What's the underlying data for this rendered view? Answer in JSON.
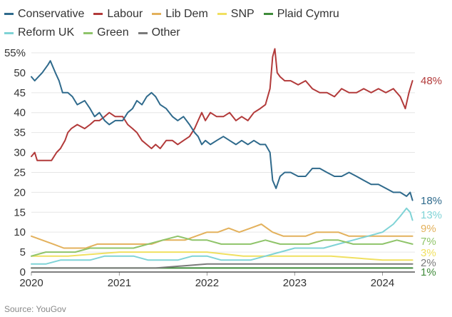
{
  "source": "Source: YouGov",
  "chart_data": {
    "type": "line",
    "y_ticks": [
      "0",
      "5",
      "10",
      "15",
      "20",
      "25",
      "30",
      "35",
      "40",
      "45",
      "50",
      "55%"
    ],
    "ylim": [
      0,
      55
    ],
    "x_ticks": [
      "2020",
      "2021",
      "2022",
      "2023",
      "2024"
    ],
    "xlim": [
      "2020-01-01",
      "2024-05-15"
    ],
    "grid": true,
    "legend_position": "top",
    "series": [
      {
        "name": "Conservative",
        "color": "#2f6a8c",
        "end_label": "18%",
        "points": [
          [
            "2020-01-01",
            49
          ],
          [
            "2020-01-15",
            48
          ],
          [
            "2020-02-15",
            50
          ],
          [
            "2020-03-10",
            52
          ],
          [
            "2020-03-20",
            53
          ],
          [
            "2020-04-10",
            50
          ],
          [
            "2020-04-25",
            48
          ],
          [
            "2020-05-10",
            45
          ],
          [
            "2020-06-01",
            45
          ],
          [
            "2020-06-20",
            44
          ],
          [
            "2020-07-10",
            42
          ],
          [
            "2020-08-10",
            43
          ],
          [
            "2020-09-01",
            41
          ],
          [
            "2020-09-20",
            39
          ],
          [
            "2020-10-10",
            40
          ],
          [
            "2020-11-01",
            38
          ],
          [
            "2020-11-20",
            37
          ],
          [
            "2020-12-15",
            38
          ],
          [
            "2021-01-15",
            38
          ],
          [
            "2021-02-05",
            40
          ],
          [
            "2021-02-25",
            41
          ],
          [
            "2021-03-15",
            43
          ],
          [
            "2021-04-05",
            42
          ],
          [
            "2021-04-25",
            44
          ],
          [
            "2021-05-15",
            45
          ],
          [
            "2021-06-01",
            44
          ],
          [
            "2021-06-20",
            42
          ],
          [
            "2021-07-15",
            41
          ],
          [
            "2021-08-10",
            39
          ],
          [
            "2021-09-01",
            38
          ],
          [
            "2021-09-25",
            39
          ],
          [
            "2021-10-20",
            37
          ],
          [
            "2021-11-10",
            35
          ],
          [
            "2021-11-25",
            34
          ],
          [
            "2021-12-10",
            32
          ],
          [
            "2021-12-25",
            33
          ],
          [
            "2022-01-15",
            32
          ],
          [
            "2022-02-10",
            33
          ],
          [
            "2022-03-10",
            34
          ],
          [
            "2022-04-05",
            33
          ],
          [
            "2022-05-01",
            32
          ],
          [
            "2022-05-25",
            33
          ],
          [
            "2022-06-20",
            32
          ],
          [
            "2022-07-15",
            33
          ],
          [
            "2022-08-10",
            32
          ],
          [
            "2022-09-01",
            32
          ],
          [
            "2022-09-20",
            30
          ],
          [
            "2022-10-01",
            23
          ],
          [
            "2022-10-15",
            21
          ],
          [
            "2022-11-01",
            24
          ],
          [
            "2022-11-20",
            25
          ],
          [
            "2022-12-15",
            25
          ],
          [
            "2023-01-15",
            24
          ],
          [
            "2023-02-15",
            24
          ],
          [
            "2023-03-15",
            26
          ],
          [
            "2023-04-15",
            26
          ],
          [
            "2023-05-15",
            25
          ],
          [
            "2023-06-15",
            24
          ],
          [
            "2023-07-15",
            24
          ],
          [
            "2023-08-15",
            25
          ],
          [
            "2023-09-15",
            24
          ],
          [
            "2023-10-15",
            23
          ],
          [
            "2023-11-15",
            22
          ],
          [
            "2023-12-15",
            22
          ],
          [
            "2024-01-15",
            21
          ],
          [
            "2024-02-15",
            20
          ],
          [
            "2024-03-15",
            20
          ],
          [
            "2024-04-10",
            19
          ],
          [
            "2024-04-25",
            20
          ],
          [
            "2024-05-05",
            18
          ]
        ]
      },
      {
        "name": "Labour",
        "color": "#b23a3a",
        "end_label": "48%",
        "points": [
          [
            "2020-01-01",
            29
          ],
          [
            "2020-01-15",
            30
          ],
          [
            "2020-01-25",
            28
          ],
          [
            "2020-02-15",
            28
          ],
          [
            "2020-03-10",
            28
          ],
          [
            "2020-03-25",
            28
          ],
          [
            "2020-04-15",
            30
          ],
          [
            "2020-05-01",
            31
          ],
          [
            "2020-05-20",
            33
          ],
          [
            "2020-06-01",
            35
          ],
          [
            "2020-06-15",
            36
          ],
          [
            "2020-07-10",
            37
          ],
          [
            "2020-08-10",
            36
          ],
          [
            "2020-09-01",
            37
          ],
          [
            "2020-09-20",
            38
          ],
          [
            "2020-10-10",
            38
          ],
          [
            "2020-11-01",
            39
          ],
          [
            "2020-11-20",
            40
          ],
          [
            "2020-12-15",
            39
          ],
          [
            "2021-01-15",
            39
          ],
          [
            "2021-02-05",
            37
          ],
          [
            "2021-02-25",
            36
          ],
          [
            "2021-03-15",
            35
          ],
          [
            "2021-04-05",
            33
          ],
          [
            "2021-04-25",
            32
          ],
          [
            "2021-05-15",
            31
          ],
          [
            "2021-06-01",
            32
          ],
          [
            "2021-06-20",
            31
          ],
          [
            "2021-07-15",
            33
          ],
          [
            "2021-08-10",
            33
          ],
          [
            "2021-09-01",
            32
          ],
          [
            "2021-09-25",
            33
          ],
          [
            "2021-10-20",
            34
          ],
          [
            "2021-11-10",
            36
          ],
          [
            "2021-11-25",
            38
          ],
          [
            "2021-12-10",
            40
          ],
          [
            "2021-12-25",
            38
          ],
          [
            "2022-01-15",
            40
          ],
          [
            "2022-02-10",
            39
          ],
          [
            "2022-03-10",
            39
          ],
          [
            "2022-04-05",
            40
          ],
          [
            "2022-05-01",
            38
          ],
          [
            "2022-05-25",
            39
          ],
          [
            "2022-06-20",
            38
          ],
          [
            "2022-07-15",
            40
          ],
          [
            "2022-08-10",
            41
          ],
          [
            "2022-09-01",
            42
          ],
          [
            "2022-09-20",
            46
          ],
          [
            "2022-10-01",
            54
          ],
          [
            "2022-10-10",
            56
          ],
          [
            "2022-10-20",
            50
          ],
          [
            "2022-11-01",
            49
          ],
          [
            "2022-11-20",
            48
          ],
          [
            "2022-12-15",
            48
          ],
          [
            "2023-01-15",
            47
          ],
          [
            "2023-02-15",
            48
          ],
          [
            "2023-03-15",
            46
          ],
          [
            "2023-04-15",
            45
          ],
          [
            "2023-05-15",
            45
          ],
          [
            "2023-06-15",
            44
          ],
          [
            "2023-07-15",
            46
          ],
          [
            "2023-08-15",
            45
          ],
          [
            "2023-09-15",
            45
          ],
          [
            "2023-10-15",
            46
          ],
          [
            "2023-11-15",
            45
          ],
          [
            "2023-12-15",
            46
          ],
          [
            "2024-01-15",
            45
          ],
          [
            "2024-02-15",
            46
          ],
          [
            "2024-03-15",
            44
          ],
          [
            "2024-04-05",
            41
          ],
          [
            "2024-04-20",
            45
          ],
          [
            "2024-05-05",
            48
          ]
        ]
      },
      {
        "name": "Lib Dem",
        "color": "#e3b15c",
        "end_label": "9%",
        "points": [
          [
            "2020-01-01",
            9
          ],
          [
            "2020-02-15",
            8
          ],
          [
            "2020-04-01",
            7
          ],
          [
            "2020-05-15",
            6
          ],
          [
            "2020-07-01",
            6
          ],
          [
            "2020-08-15",
            6
          ],
          [
            "2020-10-01",
            7
          ],
          [
            "2020-11-15",
            7
          ],
          [
            "2021-01-01",
            7
          ],
          [
            "2021-02-15",
            7
          ],
          [
            "2021-04-01",
            7
          ],
          [
            "2021-05-15",
            7
          ],
          [
            "2021-07-01",
            8
          ],
          [
            "2021-08-15",
            8
          ],
          [
            "2021-10-01",
            8
          ],
          [
            "2021-11-15",
            9
          ],
          [
            "2022-01-01",
            10
          ],
          [
            "2022-02-15",
            10
          ],
          [
            "2022-04-01",
            11
          ],
          [
            "2022-05-15",
            10
          ],
          [
            "2022-07-01",
            11
          ],
          [
            "2022-08-15",
            12
          ],
          [
            "2022-10-01",
            10
          ],
          [
            "2022-11-15",
            9
          ],
          [
            "2023-01-01",
            9
          ],
          [
            "2023-02-15",
            9
          ],
          [
            "2023-04-01",
            10
          ],
          [
            "2023-05-15",
            10
          ],
          [
            "2023-07-01",
            10
          ],
          [
            "2023-08-15",
            9
          ],
          [
            "2023-10-01",
            9
          ],
          [
            "2023-11-15",
            9
          ],
          [
            "2024-01-01",
            9
          ],
          [
            "2024-02-15",
            9
          ],
          [
            "2024-04-01",
            9
          ],
          [
            "2024-05-05",
            9
          ]
        ]
      },
      {
        "name": "SNP",
        "color": "#f0e060",
        "end_label": "3%",
        "points": [
          [
            "2020-01-01",
            4
          ],
          [
            "2020-06-01",
            4
          ],
          [
            "2021-01-01",
            5
          ],
          [
            "2021-06-01",
            5
          ],
          [
            "2022-01-01",
            5
          ],
          [
            "2022-06-01",
            4
          ],
          [
            "2023-01-01",
            4
          ],
          [
            "2023-06-01",
            4
          ],
          [
            "2024-01-01",
            3
          ],
          [
            "2024-05-05",
            3
          ]
        ]
      },
      {
        "name": "Plaid Cymru",
        "color": "#3f8b3a",
        "end_label": "1%",
        "points": [
          [
            "2020-01-01",
            1
          ],
          [
            "2020-06-01",
            1
          ],
          [
            "2021-01-01",
            1
          ],
          [
            "2021-06-01",
            1
          ],
          [
            "2022-01-01",
            1
          ],
          [
            "2022-06-01",
            1
          ],
          [
            "2023-01-01",
            1
          ],
          [
            "2023-06-01",
            1
          ],
          [
            "2024-01-01",
            1
          ],
          [
            "2024-05-05",
            1
          ]
        ]
      },
      {
        "name": "Reform UK",
        "color": "#7fd3d6",
        "end_label": "13%",
        "points": [
          [
            "2020-01-01",
            2
          ],
          [
            "2020-03-01",
            2
          ],
          [
            "2020-05-01",
            3
          ],
          [
            "2020-07-01",
            3
          ],
          [
            "2020-09-01",
            3
          ],
          [
            "2020-11-01",
            4
          ],
          [
            "2021-01-01",
            4
          ],
          [
            "2021-03-01",
            4
          ],
          [
            "2021-05-01",
            3
          ],
          [
            "2021-07-01",
            3
          ],
          [
            "2021-09-01",
            3
          ],
          [
            "2021-11-01",
            4
          ],
          [
            "2022-01-01",
            4
          ],
          [
            "2022-03-01",
            3
          ],
          [
            "2022-05-01",
            3
          ],
          [
            "2022-07-01",
            3
          ],
          [
            "2022-09-01",
            4
          ],
          [
            "2022-11-01",
            5
          ],
          [
            "2023-01-01",
            6
          ],
          [
            "2023-03-01",
            6
          ],
          [
            "2023-05-01",
            6
          ],
          [
            "2023-07-01",
            7
          ],
          [
            "2023-09-01",
            8
          ],
          [
            "2023-11-01",
            9
          ],
          [
            "2024-01-01",
            10
          ],
          [
            "2024-02-15",
            12
          ],
          [
            "2024-03-15",
            14
          ],
          [
            "2024-04-10",
            16
          ],
          [
            "2024-04-25",
            15
          ],
          [
            "2024-05-05",
            13
          ]
        ]
      },
      {
        "name": "Green",
        "color": "#8fc46a",
        "end_label": "7%",
        "points": [
          [
            "2020-01-01",
            4
          ],
          [
            "2020-03-01",
            5
          ],
          [
            "2020-05-01",
            5
          ],
          [
            "2020-07-01",
            5
          ],
          [
            "2020-09-01",
            6
          ],
          [
            "2020-11-01",
            6
          ],
          [
            "2021-01-01",
            6
          ],
          [
            "2021-03-01",
            6
          ],
          [
            "2021-05-01",
            7
          ],
          [
            "2021-07-01",
            8
          ],
          [
            "2021-09-01",
            9
          ],
          [
            "2021-11-01",
            8
          ],
          [
            "2022-01-01",
            8
          ],
          [
            "2022-03-01",
            7
          ],
          [
            "2022-05-01",
            7
          ],
          [
            "2022-07-01",
            7
          ],
          [
            "2022-09-01",
            8
          ],
          [
            "2022-11-01",
            7
          ],
          [
            "2023-01-01",
            7
          ],
          [
            "2023-03-01",
            7
          ],
          [
            "2023-05-01",
            8
          ],
          [
            "2023-07-01",
            8
          ],
          [
            "2023-09-01",
            7
          ],
          [
            "2023-11-01",
            7
          ],
          [
            "2024-01-01",
            7
          ],
          [
            "2024-03-01",
            8
          ],
          [
            "2024-05-05",
            7
          ]
        ]
      },
      {
        "name": "Other",
        "color": "#7a7a7a",
        "end_label": "2%",
        "points": [
          [
            "2020-01-01",
            1
          ],
          [
            "2020-06-01",
            1
          ],
          [
            "2021-01-01",
            1
          ],
          [
            "2021-06-01",
            1
          ],
          [
            "2022-01-01",
            2
          ],
          [
            "2022-06-01",
            2
          ],
          [
            "2023-01-01",
            2
          ],
          [
            "2023-06-01",
            2
          ],
          [
            "2024-01-01",
            2
          ],
          [
            "2024-05-05",
            2
          ]
        ]
      }
    ]
  }
}
